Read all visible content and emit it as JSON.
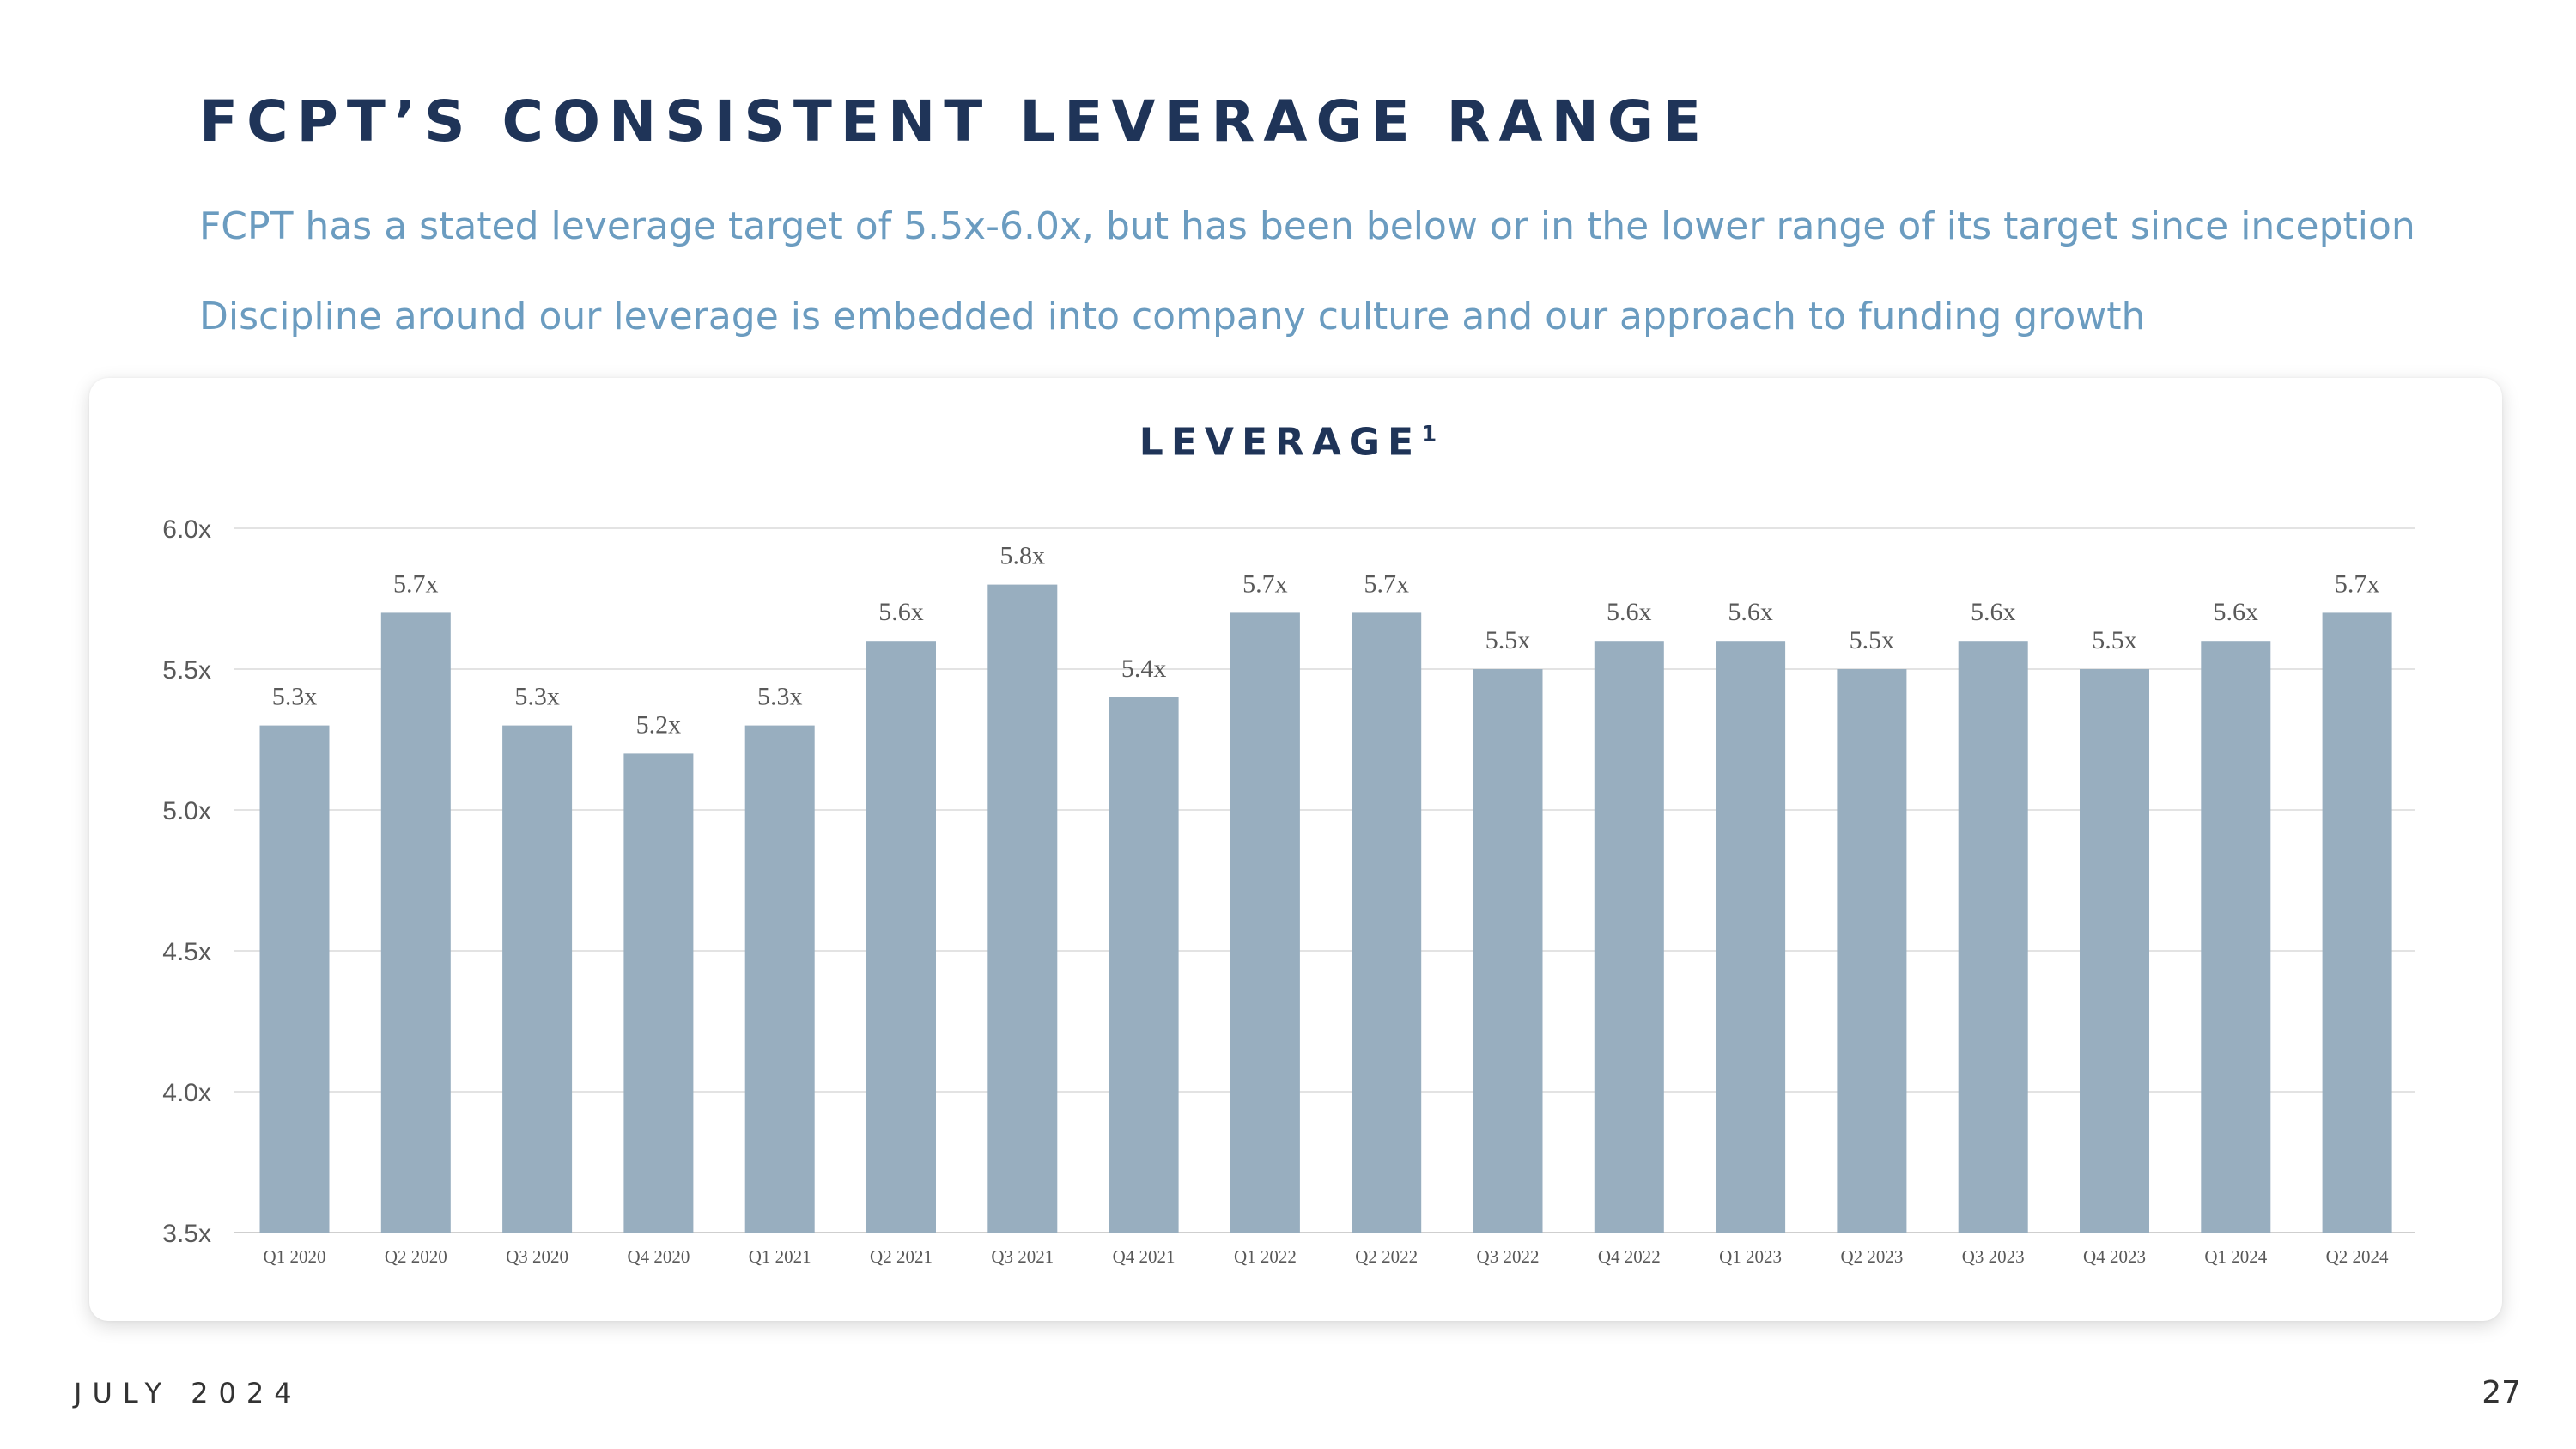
{
  "slide": {
    "title": "FCPT’S CONSISTENT LEVERAGE RANGE",
    "subtitle_1": "FCPT has a stated leverage target of 5.5x-6.0x, but has been below or in the lower range of its target since inception",
    "subtitle_2": "Discipline around our leverage is embedded into company culture and our approach to funding growth",
    "footer_date": "JULY 2024",
    "page_number": "27"
  },
  "chart_data": {
    "type": "bar",
    "title": "LEVERAGE",
    "title_footnote": "1",
    "categories": [
      "Q1 2020",
      "Q2 2020",
      "Q3 2020",
      "Q4 2020",
      "Q1 2021",
      "Q2 2021",
      "Q3 2021",
      "Q4 2021",
      "Q1 2022",
      "Q2 2022",
      "Q3 2022",
      "Q4 2022",
      "Q1 2023",
      "Q2 2023",
      "Q3 2023",
      "Q4 2023",
      "Q1 2024",
      "Q2 2024"
    ],
    "values": [
      5.3,
      5.7,
      5.3,
      5.2,
      5.3,
      5.6,
      5.8,
      5.4,
      5.7,
      5.7,
      5.5,
      5.6,
      5.6,
      5.5,
      5.6,
      5.5,
      5.6,
      5.7
    ],
    "data_labels": [
      "5.3x",
      "5.7x",
      "5.3x",
      "5.2x",
      "5.3x",
      "5.6x",
      "5.8x",
      "5.4x",
      "5.7x",
      "5.7x",
      "5.5x",
      "5.6x",
      "5.6x",
      "5.5x",
      "5.6x",
      "5.5x",
      "5.6x",
      "5.7x"
    ],
    "ylim": [
      3.5,
      6.0
    ],
    "yticks": [
      3.5,
      4.0,
      4.5,
      5.0,
      5.5,
      6.0
    ],
    "ytick_labels": [
      "3.5x",
      "4.0x",
      "4.5x",
      "5.0x",
      "5.5x",
      "6.0x"
    ],
    "xlabel": "",
    "ylabel": "",
    "grid": true,
    "bar_color": "#98aebf"
  }
}
